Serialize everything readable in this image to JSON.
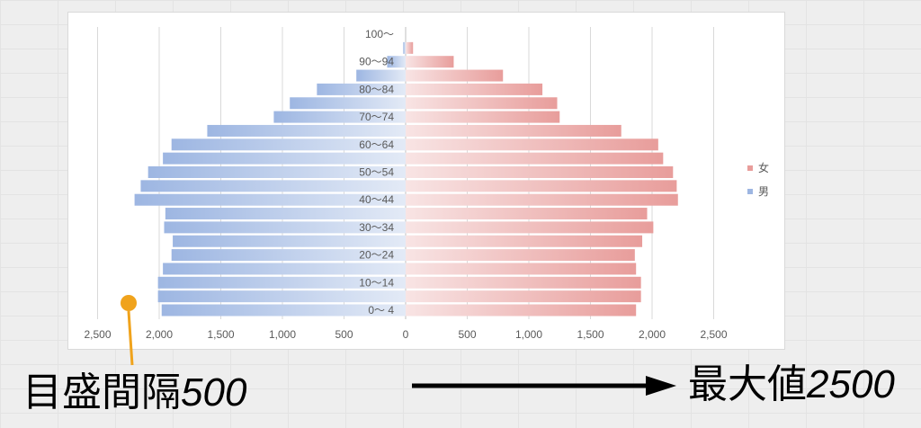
{
  "chart_data": {
    "type": "bar",
    "orientation": "horizontal",
    "categories": [
      "0～ 4",
      "",
      "10～14",
      "",
      "20～24",
      "",
      "30～34",
      "",
      "40～44",
      "",
      "50～54",
      "",
      "60～64",
      "",
      "70～74",
      "",
      "80～84",
      "",
      "90～94",
      "",
      "100～"
    ],
    "series": [
      {
        "name": "男",
        "values": [
          1980,
          2010,
          2010,
          1970,
          1900,
          1890,
          1960,
          1950,
          2200,
          2150,
          2090,
          1970,
          1900,
          1610,
          1070,
          940,
          720,
          400,
          150,
          20,
          0
        ]
      },
      {
        "name": "女",
        "values": [
          1870,
          1910,
          1910,
          1870,
          1860,
          1920,
          2010,
          1960,
          2210,
          2200,
          2170,
          2090,
          2050,
          1750,
          1250,
          1230,
          1110,
          790,
          390,
          60,
          0
        ]
      }
    ],
    "xlim": [
      -2500,
      2500
    ],
    "x_ticks": [
      -2500,
      -2000,
      -1500,
      -1000,
      -500,
      0,
      500,
      1000,
      1500,
      2000,
      2500
    ],
    "x_tick_labels": [
      "2,500",
      "2,000",
      "1,500",
      "1,000",
      "500",
      "0",
      "500",
      "1,000",
      "1,500",
      "2,000",
      "2,500"
    ],
    "grid": true,
    "legend_position": "right"
  },
  "annotations": {
    "tick_interval": {
      "label": "目盛間隔",
      "value": "500"
    },
    "max_value": {
      "label": "最大値",
      "value": "2500"
    }
  },
  "colors": {
    "male": "#9db6e2",
    "male_light": "#e3eaf6",
    "female": "#e89d9b",
    "female_light": "#f8e4e4",
    "annotation": "#f0a31c",
    "arrow": "#000000"
  }
}
